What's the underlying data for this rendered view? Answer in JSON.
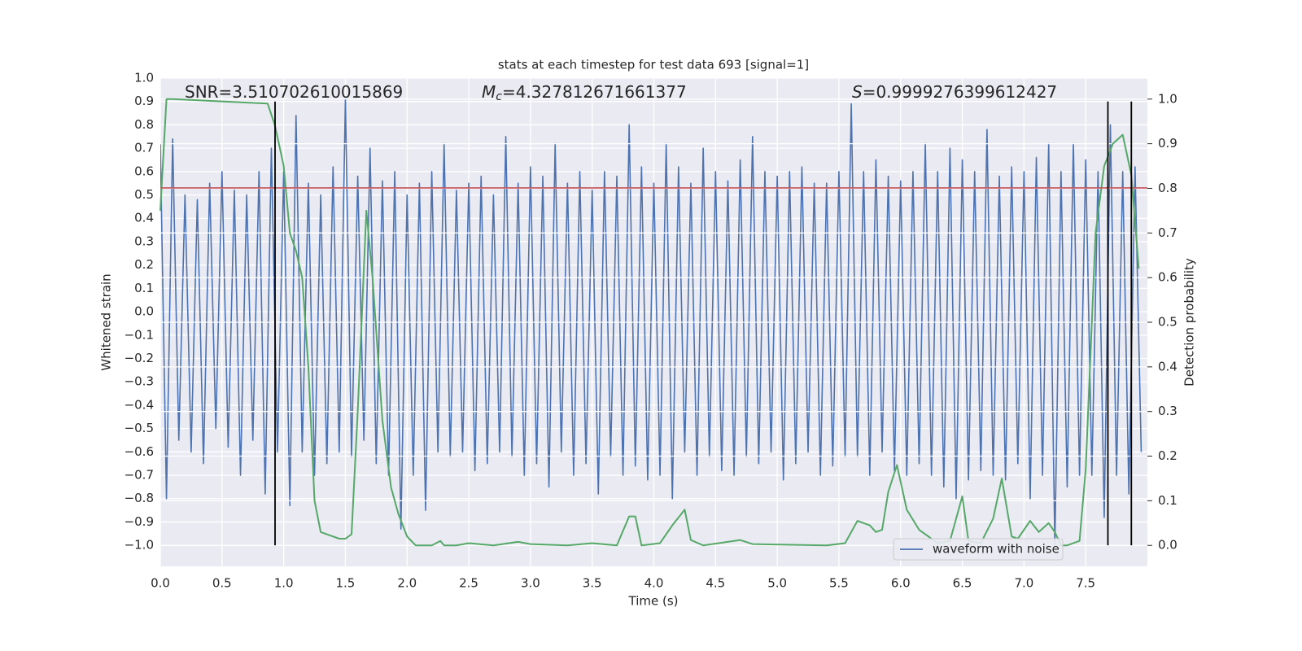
{
  "chart_data": {
    "type": "line",
    "title": "stats at each timestep for test data 693 [signal=1]",
    "xlabel": "Time (s)",
    "ylabel": "Whitened strain",
    "y2label": "Detection probability",
    "annotations": [
      {
        "text": "SNR=3.510702610015869"
      },
      {
        "symbol": "M",
        "sub": "c",
        "text": "=4.327812671661377"
      },
      {
        "symbol": "S",
        "text": "=0.9999276399612427"
      }
    ],
    "xlim": [
      0,
      8.0
    ],
    "xticks": [
      {
        "value": 0,
        "label": "0.0"
      },
      {
        "value": 0.5,
        "label": "0.5"
      },
      {
        "value": 1,
        "label": "1.0"
      },
      {
        "value": 1.5,
        "label": "1.5"
      },
      {
        "value": 2,
        "label": "2.0"
      },
      {
        "value": 2.5,
        "label": "2.5"
      },
      {
        "value": 3,
        "label": "3.0"
      },
      {
        "value": 3.5,
        "label": "3.5"
      },
      {
        "value": 4,
        "label": "4.0"
      },
      {
        "value": 4.5,
        "label": "4.5"
      },
      {
        "value": 5,
        "label": "5.0"
      },
      {
        "value": 5.5,
        "label": "5.5"
      },
      {
        "value": 6,
        "label": "6.0"
      },
      {
        "value": 6.5,
        "label": "6.5"
      },
      {
        "value": 7,
        "label": "7.0"
      },
      {
        "value": 7.5,
        "label": "7.5"
      }
    ],
    "ylim": [
      -1.09,
      1.0
    ],
    "yticks": [
      {
        "value": -1,
        "label": "−1.0"
      },
      {
        "value": -0.9,
        "label": "−0.9"
      },
      {
        "value": -0.8,
        "label": "−0.8"
      },
      {
        "value": -0.7,
        "label": "−0.7"
      },
      {
        "value": -0.6,
        "label": "−0.6"
      },
      {
        "value": -0.5,
        "label": "−0.5"
      },
      {
        "value": -0.4,
        "label": "−0.4"
      },
      {
        "value": -0.3,
        "label": "−0.3"
      },
      {
        "value": -0.2,
        "label": "−0.2"
      },
      {
        "value": -0.1,
        "label": "−0.1"
      },
      {
        "value": 0,
        "label": "0.0"
      },
      {
        "value": 0.1,
        "label": "0.1"
      },
      {
        "value": 0.2,
        "label": "0.2"
      },
      {
        "value": 0.3,
        "label": "0.3"
      },
      {
        "value": 0.4,
        "label": "0.4"
      },
      {
        "value": 0.5,
        "label": "0.5"
      },
      {
        "value": 0.6,
        "label": "0.6"
      },
      {
        "value": 0.7,
        "label": "0.7"
      },
      {
        "value": 0.8,
        "label": "0.8"
      },
      {
        "value": 0.9,
        "label": "0.9"
      },
      {
        "value": 1,
        "label": "1.0"
      }
    ],
    "y2lim": [
      -0.047,
      1.047
    ],
    "y2ticks": [
      {
        "value": 0,
        "label": "0.0"
      },
      {
        "value": 0.1,
        "label": "0.1"
      },
      {
        "value": 0.2,
        "label": "0.2"
      },
      {
        "value": 0.3,
        "label": "0.3"
      },
      {
        "value": 0.4,
        "label": "0.4"
      },
      {
        "value": 0.5,
        "label": "0.5"
      },
      {
        "value": 0.6,
        "label": "0.6"
      },
      {
        "value": 0.7,
        "label": "0.7"
      },
      {
        "value": 0.8,
        "label": "0.8"
      },
      {
        "value": 0.9,
        "label": "0.9"
      },
      {
        "value": 1,
        "label": "1.0"
      }
    ],
    "grid": true,
    "legend": "lower right",
    "series": [
      {
        "name": "waveform with noise",
        "color": "#4c72b0",
        "x": [
          0,
          0.05,
          0.1,
          0.15,
          0.2,
          0.25,
          0.3,
          0.35,
          0.4,
          0.45,
          0.5,
          0.55,
          0.6,
          0.65,
          0.7,
          0.75,
          0.8,
          0.85,
          0.9,
          0.95,
          1.0,
          1.05,
          1.1,
          1.15,
          1.2,
          1.25,
          1.3,
          1.35,
          1.4,
          1.45,
          1.5,
          1.55,
          1.6,
          1.65,
          1.7,
          1.75,
          1.8,
          1.85,
          1.9,
          1.95,
          2.0,
          2.05,
          2.1,
          2.15,
          2.2,
          2.25,
          2.3,
          2.35,
          2.4,
          2.45,
          2.5,
          2.55,
          2.6,
          2.65,
          2.7,
          2.75,
          2.8,
          2.85,
          2.9,
          2.95,
          3.0,
          3.05,
          3.1,
          3.15,
          3.2,
          3.25,
          3.3,
          3.35,
          3.4,
          3.45,
          3.5,
          3.55,
          3.6,
          3.65,
          3.7,
          3.75,
          3.8,
          3.85,
          3.9,
          3.95,
          4.0,
          4.05,
          4.1,
          4.15,
          4.2,
          4.25,
          4.3,
          4.35,
          4.4,
          4.45,
          4.5,
          4.55,
          4.6,
          4.65,
          4.7,
          4.75,
          4.8,
          4.85,
          4.9,
          4.95,
          5.0,
          5.05,
          5.1,
          5.15,
          5.2,
          5.25,
          5.3,
          5.35,
          5.4,
          5.45,
          5.5,
          5.55,
          5.6,
          5.65,
          5.7,
          5.75,
          5.8,
          5.85,
          5.9,
          5.95,
          6.0,
          6.05,
          6.1,
          6.15,
          6.2,
          6.25,
          6.3,
          6.35,
          6.4,
          6.45,
          6.5,
          6.55,
          6.6,
          6.65,
          6.7,
          6.75,
          6.8,
          6.85,
          6.9,
          6.95,
          7.0,
          7.05,
          7.1,
          7.15,
          7.2,
          7.25,
          7.3,
          7.35,
          7.4,
          7.45,
          7.5,
          7.55,
          7.6,
          7.65,
          7.7,
          7.75,
          7.8,
          7.85,
          7.9,
          7.95
        ],
        "values": [
          0.72,
          -0.8,
          0.74,
          -0.55,
          0.5,
          -0.6,
          0.48,
          -0.65,
          0.55,
          -0.5,
          0.6,
          -0.58,
          0.52,
          -0.7,
          0.5,
          -0.55,
          0.6,
          -0.78,
          0.7,
          -0.6,
          0.6,
          -0.83,
          0.84,
          -0.6,
          0.55,
          -0.7,
          0.5,
          -0.65,
          0.62,
          -0.6,
          0.91,
          -0.62,
          0.58,
          -0.55,
          0.7,
          -0.65,
          0.56,
          -0.7,
          0.6,
          -0.93,
          0.5,
          -0.7,
          0.55,
          -0.85,
          0.6,
          -0.6,
          0.72,
          -0.62,
          0.52,
          -0.6,
          0.55,
          -0.68,
          0.58,
          -0.65,
          0.5,
          -0.6,
          0.75,
          -0.62,
          0.55,
          -0.7,
          0.62,
          -0.65,
          0.58,
          -0.75,
          0.72,
          -0.6,
          0.55,
          -0.7,
          0.6,
          -0.65,
          0.52,
          -0.78,
          0.6,
          -0.62,
          0.58,
          -0.7,
          0.8,
          -0.66,
          0.62,
          -0.72,
          0.55,
          -0.7,
          0.72,
          -0.8,
          0.62,
          -0.6,
          0.55,
          -0.7,
          0.7,
          -0.62,
          0.6,
          -0.68,
          0.56,
          -0.7,
          0.65,
          -0.62,
          0.75,
          -0.65,
          0.6,
          -0.6,
          0.58,
          -0.72,
          0.6,
          -0.65,
          0.62,
          -0.6,
          0.55,
          -0.7,
          0.55,
          -0.66,
          0.6,
          -0.62,
          0.89,
          -0.62,
          0.6,
          -0.7,
          0.65,
          -0.6,
          0.58,
          -0.68,
          0.56,
          -0.7,
          0.6,
          -0.65,
          0.72,
          -0.7,
          0.6,
          -0.75,
          0.7,
          -0.8,
          0.65,
          -0.72,
          0.6,
          -0.68,
          0.78,
          -0.7,
          0.58,
          -0.72,
          0.62,
          -0.65,
          0.6,
          -0.8,
          0.66,
          -0.7,
          0.72,
          -1.0,
          0.6,
          -0.75,
          0.72,
          -0.7,
          0.65,
          -0.7,
          0.6,
          -0.88,
          0.8,
          -0.7,
          0.6,
          -0.78,
          0.62,
          -0.6
        ]
      },
      {
        "color": "#55a868",
        "axis": "y2",
        "x": [
          0,
          0.05,
          0.1,
          0.87,
          0.93,
          1.0,
          1.05,
          1.1,
          1.15,
          1.2,
          1.25,
          1.3,
          1.35,
          1.45,
          1.5,
          1.55,
          1.6,
          1.67,
          1.72,
          1.8,
          1.87,
          1.93,
          2.0,
          2.07,
          2.2,
          2.27,
          2.3,
          2.4,
          2.5,
          2.7,
          2.9,
          3.0,
          3.3,
          3.5,
          3.7,
          3.8,
          3.85,
          3.9,
          4.05,
          4.15,
          4.25,
          4.3,
          4.4,
          4.7,
          4.8,
          5.4,
          5.55,
          5.65,
          5.75,
          5.8,
          5.85,
          5.9,
          5.97,
          6.05,
          6.15,
          6.3,
          6.4,
          6.5,
          6.55,
          6.65,
          6.75,
          6.82,
          6.9,
          6.95,
          7.05,
          7.12,
          7.2,
          7.25,
          7.3,
          7.35,
          7.45,
          7.5,
          7.58,
          7.65,
          7.72,
          7.8,
          7.87,
          7.93
        ],
        "values": [
          0.75,
          1.0,
          1.0,
          0.99,
          0.94,
          0.85,
          0.7,
          0.66,
          0.6,
          0.4,
          0.1,
          0.03,
          0.025,
          0.015,
          0.015,
          0.025,
          0.3,
          0.75,
          0.6,
          0.28,
          0.13,
          0.07,
          0.02,
          0.0,
          0.0,
          0.01,
          0.0,
          0.0,
          0.005,
          0.0,
          0.008,
          0.003,
          0.0,
          0.005,
          0.0,
          0.065,
          0.065,
          0.0,
          0.005,
          0.045,
          0.08,
          0.012,
          0.0,
          0.012,
          0.003,
          0.0,
          0.005,
          0.055,
          0.045,
          0.03,
          0.035,
          0.12,
          0.18,
          0.08,
          0.035,
          0.005,
          0.01,
          0.11,
          0.01,
          0.005,
          0.06,
          0.15,
          0.02,
          0.015,
          0.055,
          0.03,
          0.05,
          0.03,
          0.0,
          0.0,
          0.01,
          0.17,
          0.7,
          0.85,
          0.9,
          0.92,
          0.83,
          0.62
        ]
      }
    ],
    "hlines": {
      "y": [
        0.53
      ],
      "color": "#c44e52"
    },
    "vlines": {
      "x": [
        0.93,
        7.68,
        7.87
      ],
      "ymin": -1.0,
      "ymax": 0.9,
      "color": "#000000"
    }
  }
}
